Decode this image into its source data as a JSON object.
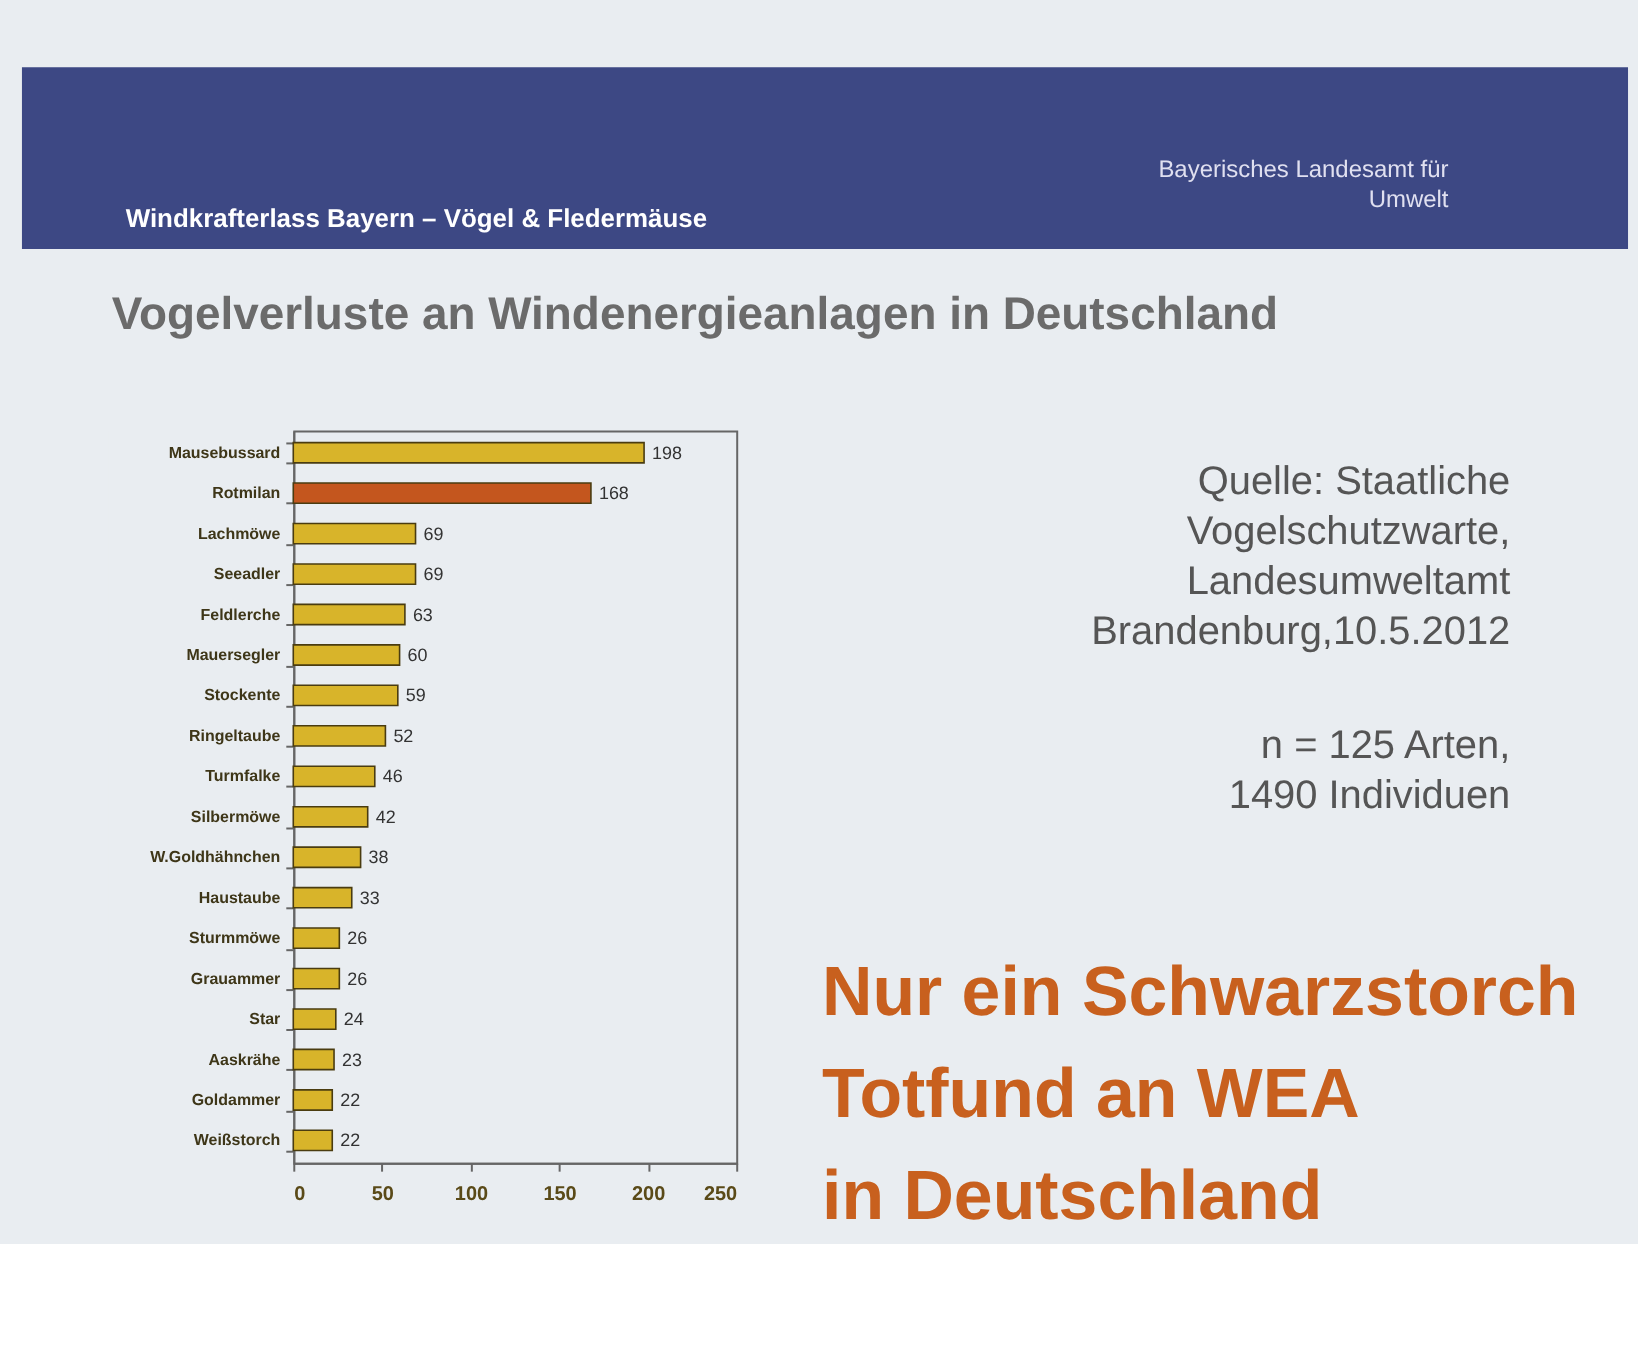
{
  "chart_data": {
    "type": "bar",
    "orientation": "horizontal",
    "title": "Vogelverluste an Windenergieanlagen in Deutschland",
    "categories": [
      "Mausebussard",
      "Rotmilan",
      "Lachmöwe",
      "Seeadler",
      "Feldlerche",
      "Mauersegler",
      "Stockente",
      "Ringeltaube",
      "Turmfalke",
      "Silbermöwe",
      "W.Goldhähnchen",
      "Haustaube",
      "Sturmmöwe",
      "Grauammer",
      "Star",
      "Aaskrähe",
      "Goldammer",
      "Weißstorch"
    ],
    "values": [
      198,
      168,
      69,
      69,
      63,
      60,
      59,
      52,
      46,
      42,
      38,
      33,
      26,
      26,
      24,
      23,
      22,
      22
    ],
    "colors": [
      "#d8b42a",
      "#c4561e",
      "#d8b42a",
      "#d8b42a",
      "#d8b42a",
      "#d8b42a",
      "#d8b42a",
      "#d8b42a",
      "#d8b42a",
      "#d8b42a",
      "#d8b42a",
      "#d8b42a",
      "#d8b42a",
      "#d8b42a",
      "#d8b42a",
      "#d8b42a",
      "#d8b42a",
      "#d8b42a"
    ],
    "xlim": [
      0,
      250
    ],
    "xticks": [
      0,
      50,
      100,
      150,
      200,
      250
    ],
    "grid": false,
    "data_labels": true,
    "annotations": [
      "Windkrafterlass Bayern – Vögel & Fledermäuse",
      "Bayerisches Landesamt für\nUmwelt",
      "Quelle: Staatliche\nVogelschutzwarte,\nLandesumweltamt\nBrandenburg,10.5.2012",
      "n = 125 Arten,\n1490 Individuen",
      "Nur ein Schwarzstorch\nTotfund an WEA\nin Deutschland"
    ]
  }
}
